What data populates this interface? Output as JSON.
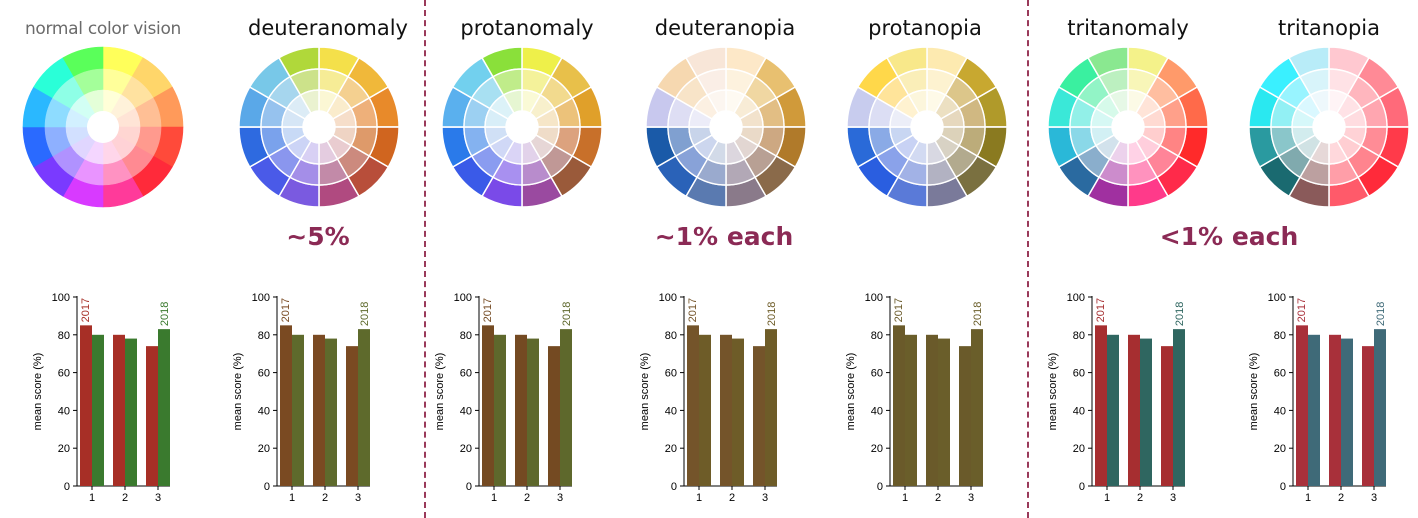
{
  "panels": [
    {
      "title": "normal color vision",
      "series_colors": [
        "#a72f26",
        "#3a7a2e"
      ]
    },
    {
      "title": "deuteranomaly",
      "series_colors": [
        "#7a4a22",
        "#5e6a2c"
      ]
    },
    {
      "title": "protanomaly",
      "series_colors": [
        "#744a22",
        "#5e682c"
      ]
    },
    {
      "title": "deuteranopia",
      "series_colors": [
        "#74542a",
        "#6e5c28"
      ]
    },
    {
      "title": "protanopia",
      "series_colors": [
        "#6a5a2a",
        "#6a5e2a"
      ]
    },
    {
      "title": "tritanomaly",
      "series_colors": [
        "#a62e30",
        "#2f6660"
      ]
    },
    {
      "title": "tritanopia",
      "series_colors": [
        "#a8303a",
        "#3f6a78"
      ]
    }
  ],
  "frequencies": [
    {
      "text": "~5%"
    },
    {
      "text": "~1% each"
    },
    {
      "text": "<1% each"
    }
  ],
  "chart_data": {
    "type": "bar",
    "categories": [
      "1",
      "2",
      "3"
    ],
    "series": [
      {
        "name": "2017",
        "values": [
          85,
          80,
          74
        ]
      },
      {
        "name": "2018",
        "values": [
          80,
          78,
          83
        ]
      }
    ],
    "ylabel": "mean score (%)",
    "ylim": [
      0,
      100
    ],
    "yticks": [
      0,
      20,
      40,
      60,
      80,
      100
    ],
    "annotations": [
      "2017",
      "2018"
    ]
  },
  "palettes": {
    "normal": [
      [
        "#ffff5a",
        "#ffd66a",
        "#ff9a5a",
        "#ff4a3a",
        "#ff2a3a",
        "#ff3a9a",
        "#d83aff",
        "#7a3aff",
        "#2a6aff",
        "#2ab8ff",
        "#2affd8",
        "#5aff5a"
      ],
      [
        "#ffff9a",
        "#ffe2a0",
        "#ffbf95",
        "#ff9a8e",
        "#ff8a92",
        "#ff92c2",
        "#e994ff",
        "#b092ff",
        "#8eb0ff",
        "#8edcff",
        "#8effe6",
        "#a4ff9a"
      ],
      [
        "#ffffd8",
        "#fff2da",
        "#ffe4d6",
        "#ffd6d2",
        "#ffd2d6",
        "#ffd6ea",
        "#f4d6ff",
        "#e0d6ff",
        "#d2e0ff",
        "#d2f0ff",
        "#d2fff4",
        "#e4ffd8"
      ]
    ],
    "deuteranomaly": [
      [
        "#f4e04a",
        "#f0b83a",
        "#e88a2a",
        "#d0651f",
        "#b84e3a",
        "#b04a80",
        "#7a5ae0",
        "#4a5ae8",
        "#2e6ae0",
        "#5aa8e8",
        "#78c8e8",
        "#b0d83a"
      ],
      [
        "#f6ec96",
        "#f4d090",
        "#eeb07a",
        "#de9a6a",
        "#cc8a7e",
        "#c28aa8",
        "#a48ee8",
        "#8a96ee",
        "#7aa2ec",
        "#96c2ee",
        "#a6d6ee",
        "#cce28a"
      ],
      [
        "#fbf7d4",
        "#faeccc",
        "#f6deca",
        "#efd4c4",
        "#e9ccd0",
        "#e4cce0",
        "#d8d0f4",
        "#ccd4f6",
        "#c8daf6",
        "#d6e6f6",
        "#dcecf6",
        "#eaf2d0"
      ]
    ],
    "protanomaly": [
      [
        "#eef04a",
        "#e8c04a",
        "#e0a02a",
        "#c8702a",
        "#9a5a3a",
        "#9a4aa0",
        "#7a4ae8",
        "#3a5ae8",
        "#2a7aea",
        "#5ab0ee",
        "#72d0ee",
        "#8ae03a"
      ],
      [
        "#f4f29a",
        "#f2da8e",
        "#ecc27a",
        "#dca27e",
        "#c09896",
        "#b88ccc",
        "#a890f0",
        "#8a9cf0",
        "#84b2f0",
        "#9cd0f2",
        "#a8e0f2",
        "#c0ec8a"
      ],
      [
        "#fafad6",
        "#f8f0cc",
        "#f6e6c8",
        "#efdcc8",
        "#e6d6d6",
        "#e2d2ea",
        "#dad4f6",
        "#d0d8f6",
        "#d0e0f6",
        "#d8eef8",
        "#dcf2f8",
        "#e6f6d2"
      ]
    ],
    "deuteranopia": [
      [
        "#fde8c8",
        "#e8c070",
        "#d09a3a",
        "#b07a2a",
        "#8a6a4a",
        "#8a7a8a",
        "#5a7ab0",
        "#2a62b8",
        "#1a5aa8",
        "#c8c8ee",
        "#f6d8b0",
        "#f8e6d8"
      ],
      [
        "#fdf2de",
        "#f0d7a2",
        "#e2be84",
        "#cda882",
        "#b8a094",
        "#b2a8b6",
        "#9aaace",
        "#88a2d8",
        "#80a0d0",
        "#dedef4",
        "#f8e4c8",
        "#faeee6"
      ],
      [
        "#fefaf2",
        "#f8ecd6",
        "#f2e2cc",
        "#eadac8",
        "#e2d6d2",
        "#dcd6de",
        "#d2dae8",
        "#ccd6ee",
        "#c8d4ea",
        "#ececf8",
        "#fcf0e2",
        "#fcf6f0"
      ]
    ],
    "protanopia": [
      [
        "#fdeab0",
        "#c8a830",
        "#b09a2a",
        "#8a7a20",
        "#7a7040",
        "#7a7a9a",
        "#5a7ad8",
        "#2a5ee0",
        "#2a6ad8",
        "#c8ccee",
        "#ffd84a",
        "#f8e88a"
      ],
      [
        "#fdf2d0",
        "#dcc68a",
        "#d0b882",
        "#bcac7a",
        "#b2aa8e",
        "#b2b2c2",
        "#a2b2e6",
        "#8aa2ea",
        "#8aaae6",
        "#dcdef4",
        "#ffe49a",
        "#faeeb8"
      ],
      [
        "#fefae8",
        "#ece0c2",
        "#e6d8be",
        "#dcd2ba",
        "#d8d2c4",
        "#d8d8e2",
        "#d2daf2",
        "#c8d2f4",
        "#c8d6f2",
        "#eceef8",
        "#fff2d0",
        "#fcf6dc"
      ]
    ],
    "tritanomaly": [
      [
        "#f4f28a",
        "#ff9a6a",
        "#ff6a4a",
        "#ff2a2a",
        "#ff2a4a",
        "#ff3a8a",
        "#a030a0",
        "#2a6aa0",
        "#2ab8d8",
        "#3ae8d8",
        "#3af0a0",
        "#8ae890"
      ],
      [
        "#f8f6b8",
        "#ffbea0",
        "#ffa08a",
        "#ff8484",
        "#ff8498",
        "#ff92be",
        "#cc8ccc",
        "#8aaecc",
        "#8ad8e8",
        "#92f0e8",
        "#92f4c6",
        "#bcf0c0"
      ],
      [
        "#fcfae6",
        "#ffe4d8",
        "#ffdad2",
        "#ffcece",
        "#ffcedc",
        "#ffd2e6",
        "#ecd2ec",
        "#d2e2ec",
        "#d2f0f4",
        "#d6f8f4",
        "#d6faea",
        "#e6f8e6"
      ]
    ],
    "tritanopia": [
      [
        "#ffc8d0",
        "#ff8a96",
        "#ff6a7a",
        "#ff3a4a",
        "#ff2a3a",
        "#ff5a6a",
        "#8a5a5a",
        "#1a6a70",
        "#2a9aa0",
        "#2ae8f0",
        "#3af0ff",
        "#b8ecf8"
      ],
      [
        "#ffe2e6",
        "#ffb6be",
        "#ffa6b0",
        "#ff8c96",
        "#ff848e",
        "#ff9ea8",
        "#bca0a0",
        "#80aaae",
        "#8ac6ca",
        "#92f0f4",
        "#98f4ff",
        "#d8f4fa"
      ],
      [
        "#fff4f6",
        "#ffe2e6",
        "#ffdce0",
        "#ffd2d6",
        "#ffced2",
        "#ffd8dc",
        "#e6d8d8",
        "#d0e2e4",
        "#d2ecee",
        "#d6f8fa",
        "#daf8ff",
        "#eef8fc"
      ]
    ]
  }
}
